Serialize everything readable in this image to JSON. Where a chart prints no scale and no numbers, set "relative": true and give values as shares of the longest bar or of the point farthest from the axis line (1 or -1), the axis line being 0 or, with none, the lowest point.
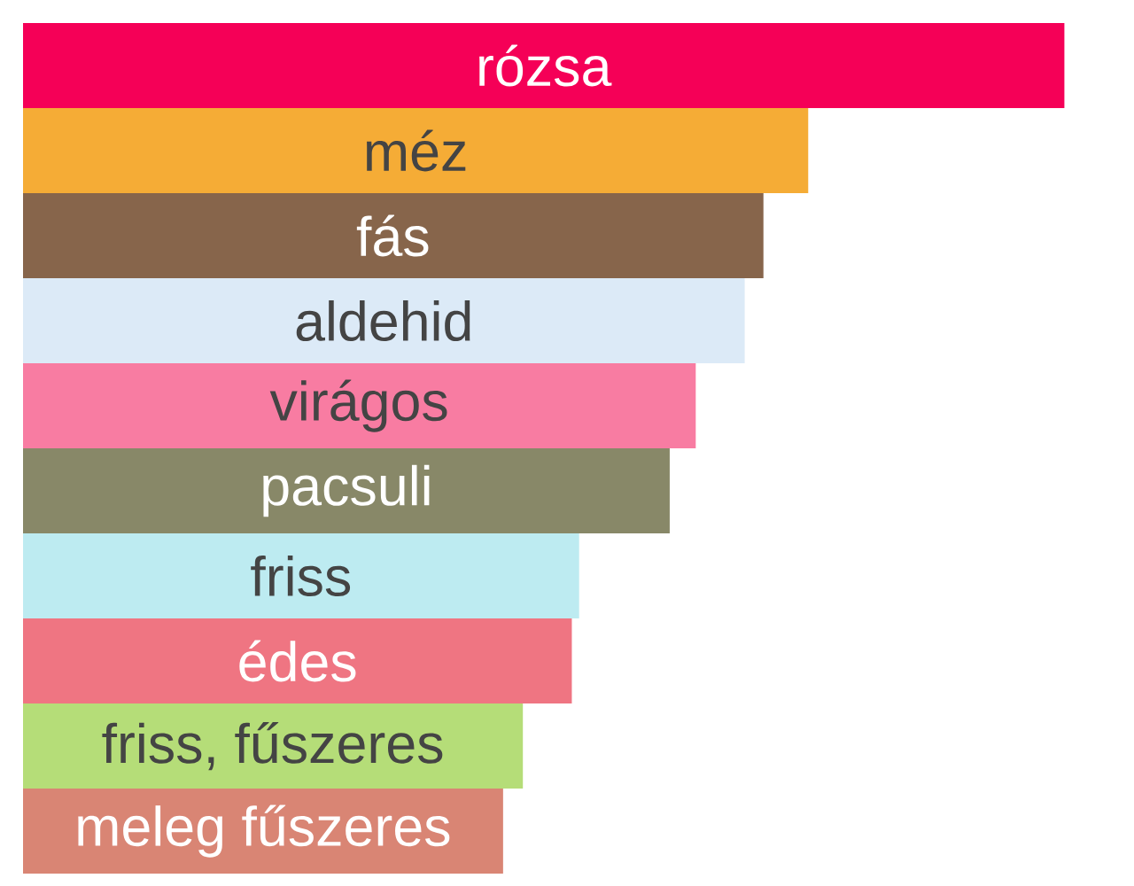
{
  "chart_data": {
    "type": "bar",
    "orientation": "horizontal",
    "relative": true,
    "categories": [
      "rózsa",
      "méz",
      "fás",
      "aldehid",
      "virágos",
      "pacsuli",
      "friss",
      "édes",
      "friss, fűszeres",
      "meleg fűszeres"
    ],
    "values": [
      1,
      0.754,
      0.711,
      0.693,
      0.646,
      0.621,
      0.534,
      0.527,
      0.48,
      0.461
    ],
    "colors": [
      "#f50057",
      "#f5ac36",
      "#87654b",
      "#dceaf7",
      "#f87ca2",
      "#888868",
      "#bdebf1",
      "#ef7582",
      "#b5dd78",
      "#d98574"
    ]
  }
}
